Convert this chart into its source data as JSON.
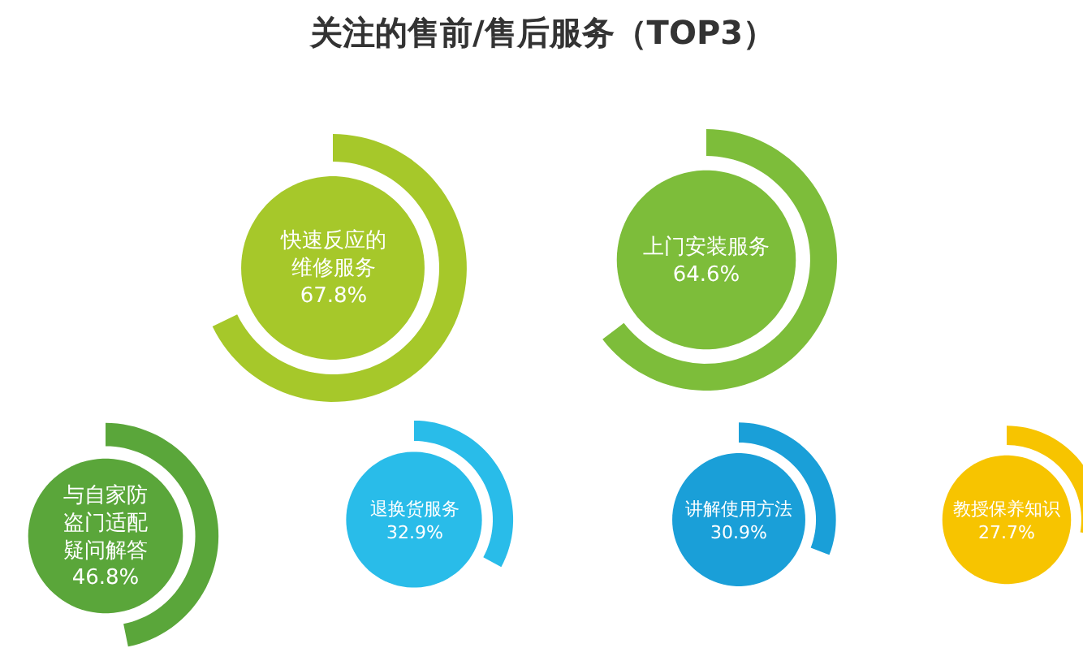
{
  "chart_data": {
    "type": "other",
    "title": "关注的售前/售后服务（TOP3）",
    "categories": [
      "快速反应的维修服务",
      "上门安装服务",
      "与自家防盗门适配疑问解答",
      "退换货服务",
      "讲解使用方法",
      "教授保养知识"
    ],
    "values": [
      67.8,
      64.6,
      46.8,
      32.9,
      30.9,
      27.7
    ],
    "value_labels": [
      "67.8%",
      "64.6%",
      "46.8%",
      "32.9%",
      "30.9%",
      "27.7%"
    ],
    "colors": [
      "#a6c82a",
      "#7dbd3a",
      "#5aa63a",
      "#29bce9",
      "#1a9fd8",
      "#f7c400"
    ]
  }
}
